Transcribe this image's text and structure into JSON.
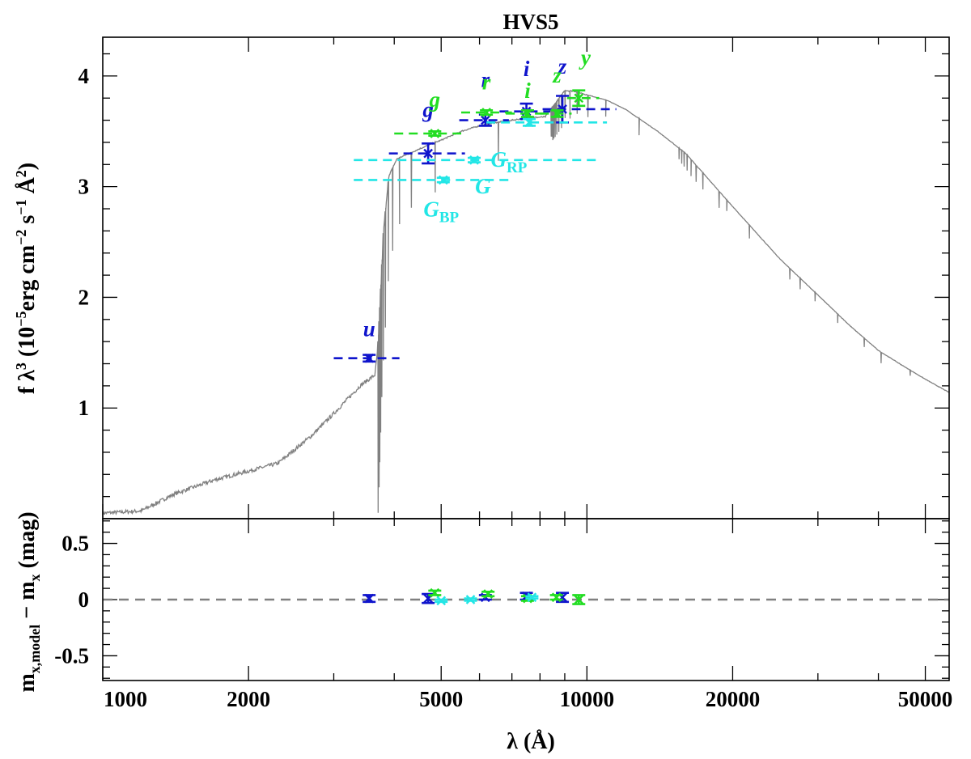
{
  "chart_data": {
    "type": "line",
    "title": "HVS5",
    "x_scale": "log",
    "xlim": [
      1000,
      56000
    ],
    "xticks": [
      1000,
      2000,
      5000,
      10000,
      20000,
      50000
    ],
    "xtick_labels": [
      "1000",
      "2000",
      "5000",
      "10000",
      "20000",
      "50000"
    ],
    "xlabel": {
      "main": "λ (Å)"
    },
    "colors": {
      "SDSS": "#0f14cc",
      "PS1": "#22dd22",
      "Gaia": "#22e6e6",
      "model": "#808080",
      "residual_zero": "#808080"
    },
    "top_panel": {
      "ylim": [
        0,
        4.35
      ],
      "yticks": [
        1,
        2,
        3,
        4
      ],
      "ytick_labels": [
        "1",
        "2",
        "3",
        "4"
      ],
      "ylabel": {
        "pre": "f λ",
        "sup1": "3",
        "mid": " (10",
        "sup2": "−5",
        "post": "erg cm",
        "sup3": "−2",
        "post2": " s",
        "sup4": "−1",
        "post3": " Å",
        "sup5": "2",
        "end": ")"
      },
      "model_spectrum": {
        "description": "synthetic stellar spectrum",
        "continuum": [
          [
            1000,
            0.05
          ],
          [
            1200,
            0.07
          ],
          [
            1400,
            0.22
          ],
          [
            1700,
            0.35
          ],
          [
            2000,
            0.43
          ],
          [
            2300,
            0.5
          ],
          [
            2700,
            0.75
          ],
          [
            3000,
            0.95
          ],
          [
            3400,
            1.2
          ],
          [
            3650,
            1.3
          ],
          [
            3700,
            1.55
          ],
          [
            3800,
            2.6
          ],
          [
            3900,
            3.1
          ],
          [
            4050,
            3.25
          ],
          [
            4500,
            3.34
          ],
          [
            5000,
            3.42
          ],
          [
            5500,
            3.5
          ],
          [
            6000,
            3.55
          ],
          [
            6500,
            3.58
          ],
          [
            7000,
            3.6
          ],
          [
            7500,
            3.62
          ],
          [
            8200,
            3.63
          ],
          [
            8600,
            3.75
          ],
          [
            9000,
            3.87
          ],
          [
            9500,
            3.86
          ],
          [
            10000,
            3.83
          ],
          [
            11000,
            3.78
          ],
          [
            12000,
            3.7
          ],
          [
            14000,
            3.5
          ],
          [
            16000,
            3.3
          ],
          [
            20000,
            2.82
          ],
          [
            25000,
            2.35
          ],
          [
            30000,
            2.02
          ],
          [
            35000,
            1.74
          ],
          [
            40000,
            1.52
          ],
          [
            45000,
            1.38
          ],
          [
            50000,
            1.26
          ],
          [
            56000,
            1.14
          ]
        ],
        "absorption_lines": [
          [
            3705,
            1.55
          ],
          [
            3722,
            1.5
          ],
          [
            3734,
            1.4
          ],
          [
            3750,
            1.3
          ],
          [
            3771,
            1.2
          ],
          [
            3798,
            1.15
          ],
          [
            3835,
            1.05
          ],
          [
            3889,
            0.9
          ],
          [
            3970,
            0.75
          ],
          [
            4102,
            0.6
          ],
          [
            4340,
            0.5
          ],
          [
            4861,
            0.45
          ],
          [
            6563,
            0.35
          ],
          [
            8438,
            0.25
          ],
          [
            8467,
            0.26
          ],
          [
            8502,
            0.3
          ],
          [
            8545,
            0.3
          ],
          [
            8598,
            0.3
          ],
          [
            8665,
            0.3
          ],
          [
            8750,
            0.3
          ],
          [
            8863,
            0.3
          ],
          [
            9015,
            0.25
          ],
          [
            9229,
            0.25
          ],
          [
            9546,
            0.2
          ],
          [
            10049,
            0.2
          ],
          [
            10938,
            0.15
          ],
          [
            12818,
            0.15
          ],
          [
            15500,
            0.1
          ],
          [
            15700,
            0.12
          ],
          [
            15880,
            0.13
          ],
          [
            16110,
            0.14
          ],
          [
            16410,
            0.15
          ],
          [
            16810,
            0.15
          ],
          [
            17360,
            0.15
          ],
          [
            18750,
            0.15
          ],
          [
            19450,
            0.1
          ],
          [
            21660,
            0.12
          ],
          [
            26250,
            0.1
          ],
          [
            27570,
            0.1
          ],
          [
            29600,
            0.08
          ],
          [
            32970,
            0.08
          ],
          [
            37400,
            0.08
          ],
          [
            40520,
            0.1
          ],
          [
            46540,
            0.05
          ]
        ]
      },
      "photometry": [
        {
          "band": "u",
          "base": "u",
          "sub": "",
          "system": "SDSS",
          "x": 3550,
          "xmin": 3000,
          "xmax": 4100,
          "y": 1.45,
          "err": 0.03,
          "label_at": [
            3550,
            1.65
          ]
        },
        {
          "band": "g",
          "base": "g",
          "sub": "",
          "system": "SDSS",
          "x": 4700,
          "xmin": 3900,
          "xmax": 5600,
          "y": 3.3,
          "err": 0.09,
          "label_at": [
            4700,
            3.63
          ]
        },
        {
          "band": "r",
          "base": "r",
          "sub": "",
          "system": "SDSS",
          "x": 6170,
          "xmin": 5450,
          "xmax": 6900,
          "y": 3.6,
          "err": 0.05,
          "label_at": [
            6170,
            3.9
          ]
        },
        {
          "band": "i",
          "base": "i",
          "sub": "",
          "system": "SDSS",
          "x": 7500,
          "xmin": 6600,
          "xmax": 8400,
          "y": 3.68,
          "err": 0.07,
          "label_at": [
            7500,
            4.0
          ]
        },
        {
          "band": "z",
          "base": "z",
          "sub": "",
          "system": "SDSS",
          "x": 8900,
          "xmin": 8100,
          "xmax": 11500,
          "y": 3.7,
          "err": 0.12,
          "label_at": [
            8900,
            4.02
          ]
        },
        {
          "band": "g_PS1",
          "base": "g",
          "sub": "",
          "system": "PS1",
          "x": 4850,
          "xmin": 4000,
          "xmax": 5500,
          "y": 3.48,
          "err": 0.02,
          "label_at": [
            4850,
            3.72
          ]
        },
        {
          "band": "r_PS1",
          "base": "r",
          "sub": "",
          "system": "PS1",
          "x": 6200,
          "xmin": 5500,
          "xmax": 7000,
          "y": 3.67,
          "err": 0.02,
          "label_at": [
            6200,
            3.88
          ]
        },
        {
          "band": "i_PS1",
          "base": "i",
          "sub": "",
          "system": "PS1",
          "x": 7540,
          "xmin": 6800,
          "xmax": 8300,
          "y": 3.66,
          "err": 0.03,
          "label_at": [
            7540,
            3.8
          ]
        },
        {
          "band": "z_PS1",
          "base": "z",
          "sub": "",
          "system": "PS1",
          "x": 8680,
          "xmin": 8000,
          "xmax": 9300,
          "y": 3.66,
          "err": 0.03,
          "label_at": [
            8680,
            3.94
          ]
        },
        {
          "band": "y_PS1",
          "base": "y",
          "sub": "",
          "system": "PS1",
          "x": 9620,
          "xmin": 9100,
          "xmax": 10600,
          "y": 3.8,
          "err": 0.07,
          "label_at": [
            9950,
            4.1
          ]
        },
        {
          "band": "G_BP",
          "base": "G",
          "sub": "BP",
          "system": "Gaia",
          "x": 5050,
          "xmin": 3300,
          "xmax": 6900,
          "y": 3.06,
          "err": 0.02,
          "label_at": [
            5000,
            2.73
          ]
        },
        {
          "band": "G",
          "base": "G",
          "sub": "",
          "system": "Gaia",
          "x": 5850,
          "xmin": 3300,
          "xmax": 10500,
          "y": 3.24,
          "err": 0.02,
          "label_at": [
            6100,
            2.94
          ]
        },
        {
          "band": "G_RP",
          "base": "G",
          "sub": "RP",
          "system": "Gaia",
          "x": 7600,
          "xmin": 6200,
          "xmax": 11000,
          "y": 3.58,
          "err": 0.03,
          "label_at": [
            6900,
            3.18
          ]
        }
      ]
    },
    "bottom_panel": {
      "ylim": [
        -0.72,
        0.72
      ],
      "yticks": [
        -0.5,
        0,
        0.5
      ],
      "ytick_labels": [
        "-0.5",
        "0",
        "0.5"
      ],
      "ylabel": {
        "pre": "m",
        "sub1": "x,model",
        "mid": " − m",
        "sub2": "x",
        "post": " (mag)"
      },
      "zero_line": 0,
      "residuals": [
        {
          "band": "u",
          "system": "SDSS",
          "x": 3550,
          "y": 0.01,
          "err": 0.03
        },
        {
          "band": "g",
          "system": "SDSS",
          "x": 4700,
          "y": 0.01,
          "err": 0.04
        },
        {
          "band": "r",
          "system": "SDSS",
          "x": 6170,
          "y": 0.02,
          "err": 0.02
        },
        {
          "band": "i",
          "system": "SDSS",
          "x": 7500,
          "y": 0.03,
          "err": 0.03
        },
        {
          "band": "z",
          "system": "SDSS",
          "x": 8900,
          "y": 0.02,
          "err": 0.04
        },
        {
          "band": "g_PS1",
          "system": "PS1",
          "x": 4850,
          "y": 0.06,
          "err": 0.02
        },
        {
          "band": "r_PS1",
          "system": "PS1",
          "x": 6250,
          "y": 0.05,
          "err": 0.02
        },
        {
          "band": "i_PS1",
          "system": "PS1",
          "x": 7540,
          "y": 0.01,
          "err": 0.02
        },
        {
          "band": "z_PS1",
          "system": "PS1",
          "x": 8650,
          "y": 0.02,
          "err": 0.02
        },
        {
          "band": "y_PS1",
          "system": "PS1",
          "x": 9620,
          "y": 0.0,
          "err": 0.04
        },
        {
          "band": "G_BP",
          "system": "Gaia",
          "x": 5000,
          "y": -0.01,
          "err": 0.01
        },
        {
          "band": "G",
          "system": "Gaia",
          "x": 5750,
          "y": 0.0,
          "err": 0.01
        },
        {
          "band": "G_RP",
          "system": "Gaia",
          "x": 7700,
          "y": 0.02,
          "err": 0.01
        }
      ]
    }
  }
}
